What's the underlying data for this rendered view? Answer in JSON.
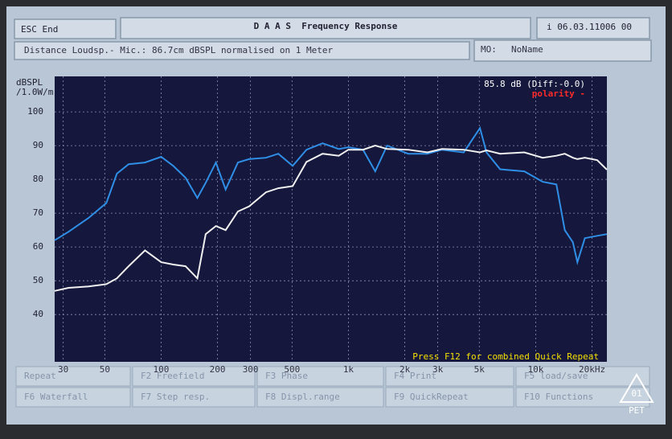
{
  "header": {
    "esc": "ESC End",
    "title": "D A A S  Frequency Response",
    "info": "i 06.03.11006 00"
  },
  "subheader": {
    "distance": "Distance Loudsp.- Mic.: 86.7cm dBSPL normalised on 1 Meter",
    "model_label": "MO:",
    "model": "NoName"
  },
  "chart_data": {
    "type": "line",
    "y_label": [
      "dBSPL",
      "/1.0W/m"
    ],
    "xscale": "log",
    "grid": true,
    "annotations": {
      "level": "85.8 dB (Diff:-0.0)",
      "polarity": "polarity -",
      "hint": "Press F12 for combined Quick Repeat"
    },
    "xlim": [
      27,
      24000
    ],
    "ylim": [
      26,
      110.5
    ],
    "xticks": [
      30,
      50,
      100,
      200,
      300,
      500,
      {
        "value": 1000,
        "label": "1k"
      },
      {
        "value": 2000,
        "label": "2k"
      },
      {
        "value": 3000,
        "label": "3k"
      },
      {
        "value": 5000,
        "label": "5k"
      },
      {
        "value": 10000,
        "label": "10k"
      },
      {
        "value": 20000,
        "label": "20kHz"
      }
    ],
    "yticks": [
      40,
      50,
      60,
      70,
      80,
      90,
      100
    ],
    "x": [
      27,
      32,
      41,
      51,
      58,
      67,
      82,
      100,
      116,
      135,
      156,
      173,
      196,
      221,
      257,
      295,
      363,
      422,
      504,
      597,
      728,
      888,
      1000,
      1196,
      1390,
      1610,
      2085,
      2643,
      3160,
      4130,
      5040,
      5460,
      6460,
      8700,
      10900,
      12900,
      14300,
      15800,
      16700,
      18300,
      21300,
      24000
    ],
    "series": [
      {
        "color": "#2f8fe6",
        "values": [
          62,
          64.5,
          68.6,
          73,
          81.7,
          84.5,
          85,
          86.7,
          84,
          80.5,
          74.5,
          79,
          85,
          77,
          85,
          86,
          86.4,
          87.6,
          84,
          88.8,
          90.7,
          89,
          89.5,
          88.8,
          82.4,
          90,
          87.6,
          87.6,
          88.8,
          88,
          95.2,
          88,
          83,
          82.4,
          79.3,
          78.5,
          65,
          61.4,
          55.5,
          62.6,
          63.3,
          63.8
        ]
      },
      {
        "color": "#f0f0f0",
        "values": [
          47,
          47.9,
          48.3,
          49,
          50.7,
          54.3,
          59,
          55.5,
          54.8,
          54.3,
          50.7,
          63.8,
          66.2,
          65,
          70.5,
          72,
          76.2,
          77.4,
          78,
          85.2,
          87.6,
          87,
          88.8,
          88.8,
          90,
          89,
          88.8,
          88,
          89,
          88.8,
          88,
          88.6,
          87.6,
          88,
          86.4,
          87,
          87.6,
          86.4,
          86,
          86.4,
          85.7,
          82.9
        ]
      }
    ]
  },
  "softkeys": [
    [
      "Repeat",
      "F2 Freefield",
      "F3 Phase",
      "F4 Print",
      "F5 load/save"
    ],
    [
      "F6 Waterfall",
      "F7 Step resp.",
      "F8 Displ.range",
      "F9 QuickRepeat",
      "F10 Functions"
    ]
  ],
  "sticker": {
    "code": "01",
    "material": "PET"
  }
}
